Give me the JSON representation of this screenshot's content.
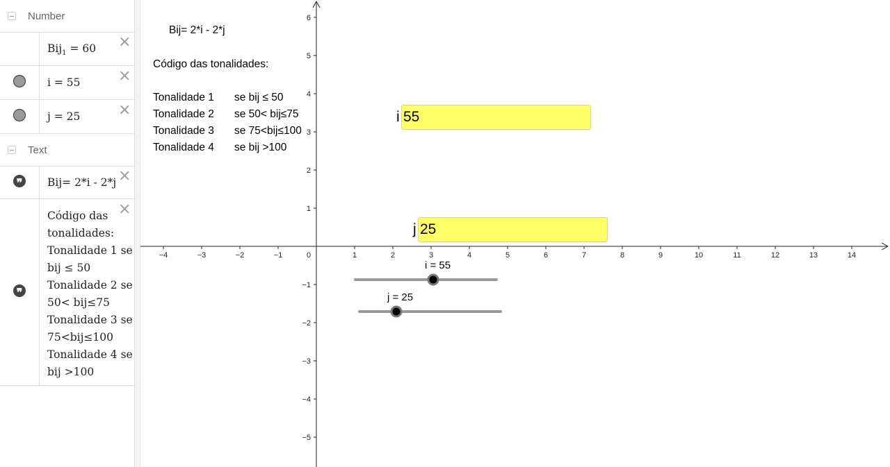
{
  "algebra": {
    "categories": {
      "number": "Number",
      "text": "Text"
    },
    "number_items": [
      {
        "name_main": "Bij",
        "name_sub": "1",
        "rest": " = 60"
      },
      {
        "label": "i = 55"
      },
      {
        "label": "j = 25"
      }
    ],
    "text_items": [
      {
        "label": "Bij= 2*i - 2*j"
      },
      {
        "lines": [
          "Código das",
          "tonalidades:",
          "Tonalidade 1 se",
          "bij ≤ 50",
          "Tonalidade 2 se",
          "50< bij≤75",
          "Tonalidade 3 se",
          "75<bij≤100",
          "Tonalidade 4 se",
          "bij >100"
        ]
      }
    ],
    "delete_symbol": "×",
    "quote_symbol": "❞"
  },
  "graphics": {
    "formula": "Bij= 2*i - 2*j",
    "legend_title": "Código das tonalidades:",
    "legend": [
      {
        "tone": "Tonalidade 1",
        "rule": "se bij ≤ 50"
      },
      {
        "tone": "Tonalidade 2",
        "rule": "se 50< bij≤75"
      },
      {
        "tone": "Tonalidade 3",
        "rule": "se 75<bij≤100"
      },
      {
        "tone": "Tonalidade 4",
        "rule": "se bij >100"
      }
    ],
    "input_boxes": [
      {
        "caption": "i",
        "value": "55"
      },
      {
        "caption": "j",
        "value": "25"
      }
    ],
    "sliders": [
      {
        "label": "i = 55",
        "value": 55,
        "min": 0,
        "max": 100
      },
      {
        "label": "j = 25",
        "value": 25,
        "min": 0,
        "max": 100
      }
    ],
    "axes": {
      "x_ticks": [
        "−4",
        "−3",
        "−2",
        "−1",
        "0",
        "1",
        "2",
        "3",
        "4",
        "5",
        "6",
        "7",
        "8",
        "9",
        "10",
        "11",
        "12",
        "13",
        "14"
      ],
      "y_ticks_pos": [
        "1",
        "2",
        "3",
        "4",
        "5",
        "6"
      ],
      "y_ticks_neg": [
        "−1",
        "−2",
        "−3",
        "−4",
        "−5"
      ]
    },
    "colors": {
      "input_fill": "#ffff66",
      "slider_track": "#999999",
      "slider_knob": "#000000"
    }
  }
}
